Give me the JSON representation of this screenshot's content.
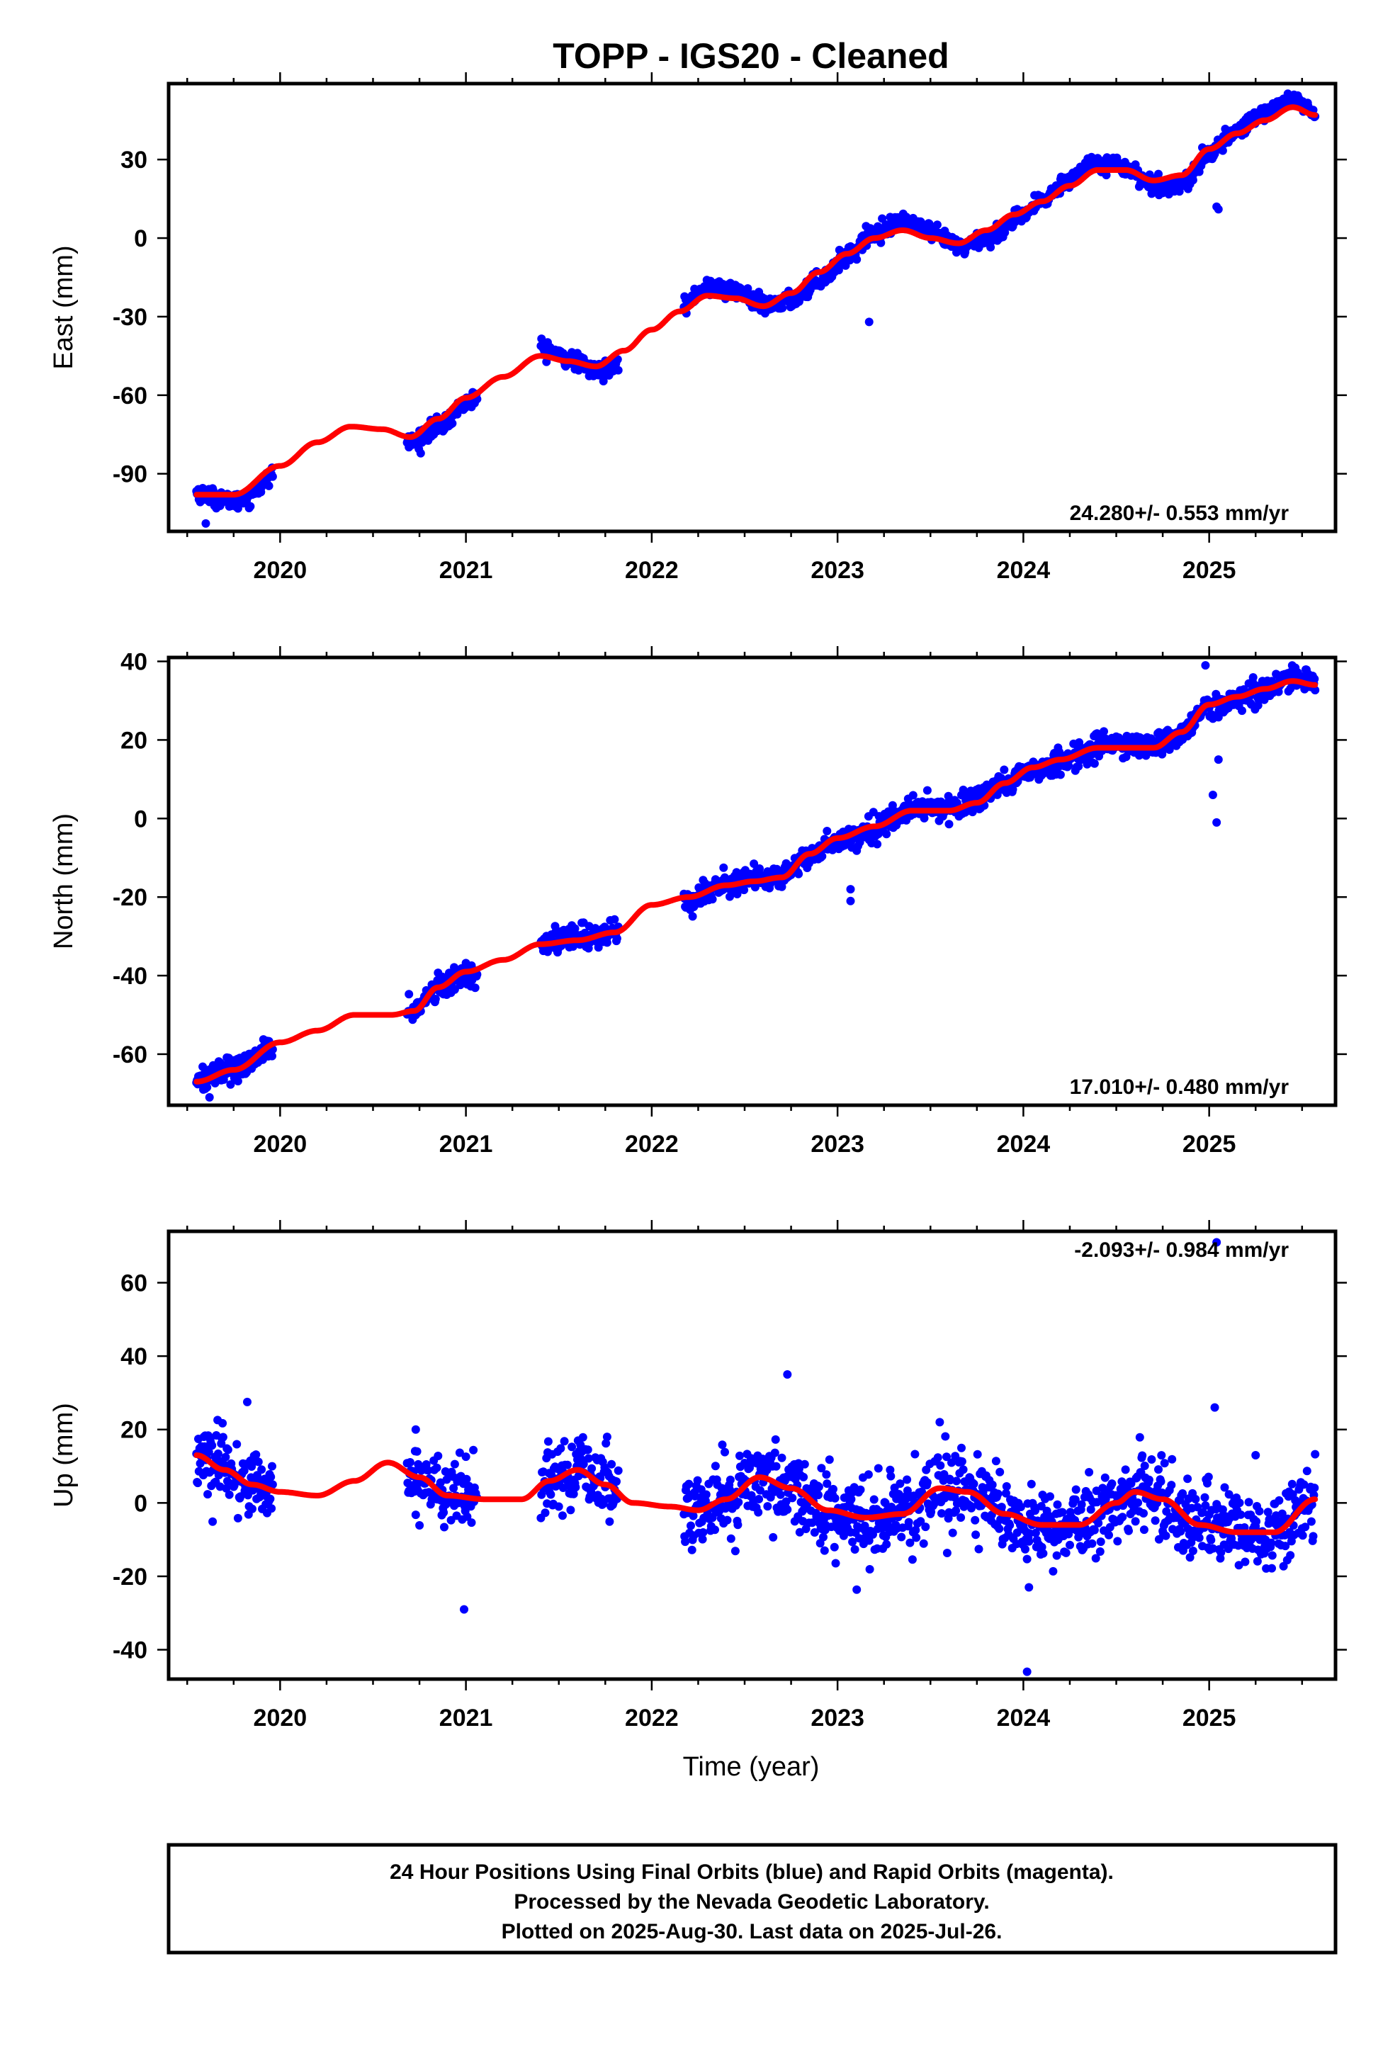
{
  "title": "TOPP  - IGS20 - Cleaned",
  "xlabel": "Time (year)",
  "footer": {
    "line1": "24 Hour Positions Using Final Orbits (blue) and Rapid Orbits (magenta).",
    "line2": "Processed by the Nevada Geodetic Laboratory.",
    "line3": "Plotted on 2025-Aug-30. Last data on 2025-Jul-26."
  },
  "colors": {
    "data_points": "#0000ff",
    "model_curve": "#ff0000",
    "frame": "#000000"
  },
  "chart_data": [
    {
      "type": "scatter",
      "panel": "East",
      "ylabel": "East (mm)",
      "rate_label": "24.280+/- 0.553 mm/yr",
      "xlim": [
        2019.4,
        2025.68
      ],
      "ylim": [
        -112,
        59
      ],
      "xticks": [
        2020,
        2021,
        2022,
        2023,
        2024,
        2025
      ],
      "yticks": [
        -90,
        -60,
        -30,
        0,
        30
      ],
      "gaps": [
        [
          2019.96,
          2020.68
        ],
        [
          2021.06,
          2021.4
        ],
        [
          2021.82,
          2022.17
        ]
      ],
      "model": {
        "x": [
          2019.55,
          2019.75,
          2020.0,
          2020.2,
          2020.38,
          2020.55,
          2020.7,
          2020.85,
          2021.0,
          2021.2,
          2021.4,
          2021.55,
          2021.7,
          2021.85,
          2022.0,
          2022.15,
          2022.3,
          2022.45,
          2022.6,
          2022.75,
          2022.9,
          2023.05,
          2023.2,
          2023.35,
          2023.5,
          2023.65,
          2023.8,
          2023.95,
          2024.1,
          2024.25,
          2024.4,
          2024.55,
          2024.7,
          2024.85,
          2025.0,
          2025.15,
          2025.3,
          2025.45,
          2025.57
        ],
        "y": [
          -98,
          -98,
          -87,
          -78,
          -72,
          -73,
          -76,
          -69,
          -61,
          -53,
          -45,
          -47,
          -49,
          -43,
          -35,
          -28,
          -22,
          -23,
          -26,
          -21,
          -13,
          -6,
          0,
          3,
          0,
          -2,
          3,
          9,
          14,
          20,
          26,
          26,
          22,
          24,
          34,
          40,
          45,
          50,
          47
        ]
      },
      "seasonal": {
        "amplitude": 3.3,
        "phase_year": 0.1,
        "noise": 1.6,
        "points_per_year": 300
      },
      "outliers": [
        [
          2019.6,
          -109
        ],
        [
          2023.17,
          -32
        ],
        [
          2025.04,
          12
        ],
        [
          2025.05,
          11
        ]
      ]
    },
    {
      "type": "scatter",
      "panel": "North",
      "ylabel": "North (mm)",
      "rate_label": "17.010+/- 0.480 mm/yr",
      "xlim": [
        2019.4,
        2025.68
      ],
      "ylim": [
        -73,
        41
      ],
      "xticks": [
        2020,
        2021,
        2022,
        2023,
        2024,
        2025
      ],
      "yticks": [
        -60,
        -40,
        -20,
        0,
        20,
        40
      ],
      "gaps": [
        [
          2019.96,
          2020.68
        ],
        [
          2021.06,
          2021.4
        ],
        [
          2021.82,
          2022.17
        ]
      ],
      "model": {
        "x": [
          2019.55,
          2019.75,
          2020.0,
          2020.2,
          2020.4,
          2020.6,
          2020.72,
          2020.85,
          2021.0,
          2021.2,
          2021.4,
          2021.6,
          2021.8,
          2022.0,
          2022.2,
          2022.4,
          2022.55,
          2022.7,
          2022.85,
          2023.0,
          2023.2,
          2023.4,
          2023.6,
          2023.75,
          2023.9,
          2024.05,
          2024.2,
          2024.4,
          2024.55,
          2024.7,
          2024.85,
          2025.0,
          2025.15,
          2025.3,
          2025.45,
          2025.57
        ],
        "y": [
          -67,
          -64,
          -57,
          -54,
          -50,
          -50,
          -49,
          -43,
          -39,
          -36,
          -32,
          -31,
          -29,
          -22,
          -20,
          -17,
          -16,
          -15,
          -9,
          -5,
          -2,
          2,
          2,
          4,
          9,
          13,
          15,
          18,
          18,
          18,
          22,
          29,
          31,
          33,
          35,
          34
        ]
      },
      "seasonal": {
        "amplitude": 0.8,
        "phase_year": 0.3,
        "noise": 1.5,
        "points_per_year": 300
      },
      "outliers": [
        [
          2019.62,
          -71
        ],
        [
          2023.07,
          -18
        ],
        [
          2023.07,
          -21
        ],
        [
          2024.98,
          39
        ],
        [
          2025.02,
          6
        ],
        [
          2025.04,
          -1
        ],
        [
          2025.05,
          15
        ]
      ]
    },
    {
      "type": "scatter",
      "panel": "Up",
      "ylabel": "Up (mm)",
      "rate_label": "-2.093+/- 0.984 mm/yr",
      "xlim": [
        2019.4,
        2025.68
      ],
      "ylim": [
        -48,
        74
      ],
      "xticks": [
        2020,
        2021,
        2022,
        2023,
        2024,
        2025
      ],
      "yticks": [
        -40,
        -20,
        0,
        20,
        40,
        60
      ],
      "gaps": [
        [
          2019.96,
          2020.68
        ],
        [
          2021.06,
          2021.4
        ],
        [
          2021.82,
          2022.17
        ]
      ],
      "model": {
        "x": [
          2019.55,
          2019.7,
          2019.85,
          2020.0,
          2020.2,
          2020.4,
          2020.58,
          2020.75,
          2020.9,
          2021.1,
          2021.3,
          2021.45,
          2021.6,
          2021.75,
          2021.9,
          2022.1,
          2022.25,
          2022.4,
          2022.58,
          2022.75,
          2022.95,
          2023.15,
          2023.35,
          2023.55,
          2023.7,
          2023.9,
          2024.1,
          2024.3,
          2024.5,
          2024.6,
          2024.75,
          2024.95,
          2025.15,
          2025.35,
          2025.57
        ],
        "y": [
          13,
          9,
          5,
          3,
          2,
          6,
          11,
          7,
          2,
          1,
          1,
          6,
          9,
          5,
          0,
          -1,
          -2,
          1,
          7,
          4,
          -2,
          -4,
          -3,
          4,
          3,
          -3,
          -6,
          -6,
          0,
          3,
          1,
          -6,
          -8,
          -8,
          1
        ]
      },
      "seasonal": {
        "amplitude": 0.0,
        "phase_year": 0.0,
        "noise": 5.0,
        "points_per_year": 300
      },
      "outliers": [
        [
          2020.73,
          20
        ],
        [
          2020.99,
          -29
        ],
        [
          2022.73,
          35
        ],
        [
          2023.55,
          22
        ],
        [
          2024.02,
          -46
        ],
        [
          2024.03,
          -23
        ],
        [
          2025.03,
          26
        ],
        [
          2025.04,
          71
        ],
        [
          2025.25,
          13
        ]
      ]
    }
  ]
}
